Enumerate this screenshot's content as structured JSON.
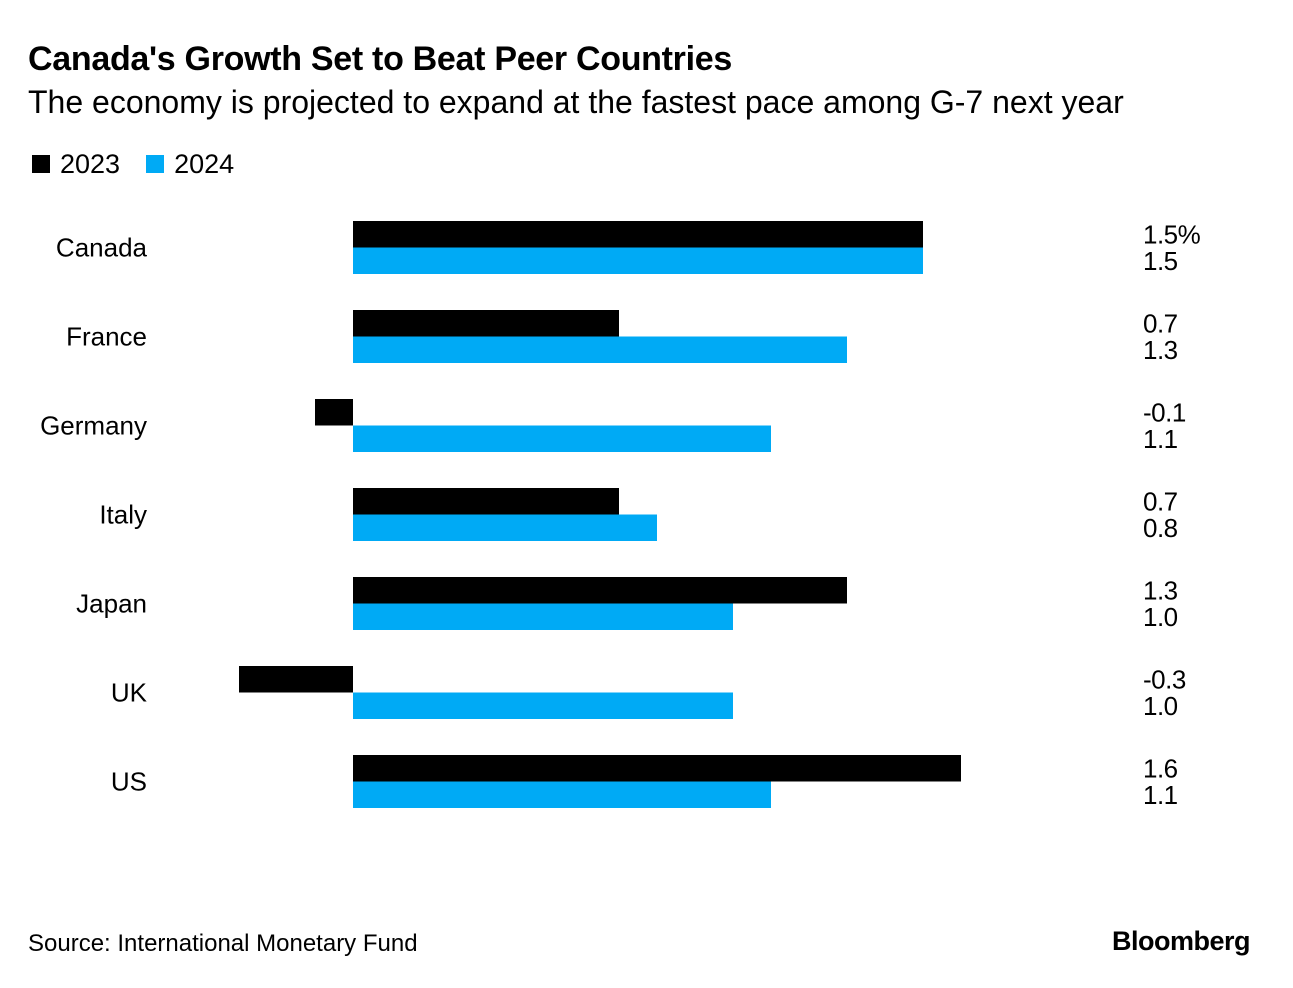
{
  "chart_data": {
    "type": "bar",
    "orientation": "horizontal",
    "title": "Canada's Growth Set to Beat Peer Countries",
    "subtitle": "The economy is projected to expand at the fastest pace among G-7 next year",
    "categories": [
      "Canada",
      "France",
      "Germany",
      "Italy",
      "Japan",
      "UK",
      "US"
    ],
    "series": [
      {
        "name": "2023",
        "color": "#000000",
        "values": [
          1.5,
          0.7,
          -0.1,
          0.7,
          1.3,
          -0.3,
          1.6
        ],
        "labels": [
          "1.5%",
          "0.7",
          "-0.1",
          "0.7",
          "1.3",
          "-0.3",
          "1.6"
        ]
      },
      {
        "name": "2024",
        "color": "#00aaf5",
        "values": [
          1.5,
          1.3,
          1.1,
          0.8,
          1.0,
          1.0,
          1.1
        ],
        "labels": [
          "1.5",
          "1.3",
          "1.1",
          "0.8",
          "1.0",
          "1.0",
          "1.1"
        ]
      }
    ],
    "xlim": [
      -0.3,
      1.6
    ],
    "grid": false,
    "legend_position": "top-left"
  },
  "footer": {
    "source": "Source: International Monetary Fund",
    "brand": "Bloomberg"
  }
}
